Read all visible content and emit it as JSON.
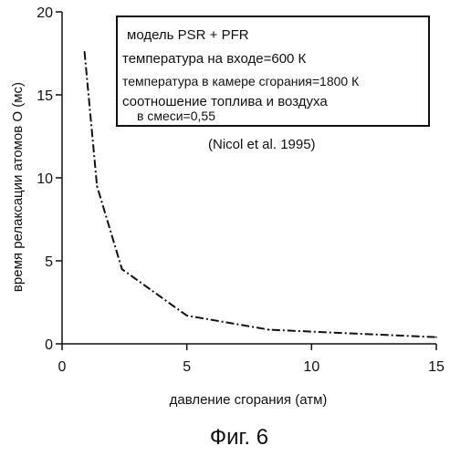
{
  "chart_data": {
    "type": "line",
    "xlabel": "давление сгорания (атм)",
    "ylabel": "время релаксации атомов O (мс)",
    "xlim": [
      0,
      15
    ],
    "ylim": [
      0,
      20
    ],
    "xticks": [
      "0",
      "5",
      "10",
      "15"
    ],
    "yticks": [
      "0",
      "5",
      "10",
      "15",
      "20"
    ],
    "grid": false,
    "series": [
      {
        "x": [
          0.9,
          1.4,
          2.4,
          5.0,
          8.3,
          15.0
        ],
        "y": [
          17.6,
          9.5,
          4.5,
          1.7,
          0.85,
          0.4
        ]
      }
    ],
    "legend": {
      "lines": [
        "модель PSR + PFR",
        "температура на входе=600 К",
        "температура в камере сгорания=1800 К",
        "соотношение топлива и воздуха",
        "в смеси=0,55"
      ]
    },
    "source_note": "(Nicol et al. 1995)"
  },
  "caption": "Фиг. 6"
}
